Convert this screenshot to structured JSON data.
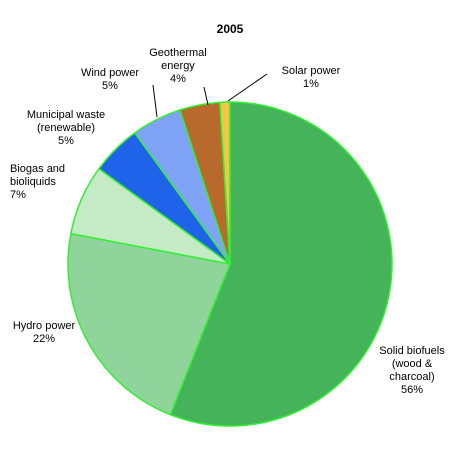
{
  "chart_data": {
    "type": "pie",
    "title": "2005",
    "legend": "none",
    "unit": "%",
    "slices": [
      {
        "label_lines": [
          "Solid biofuels",
          "(wood &",
          "charcoal)"
        ],
        "value": 56,
        "value_label": "56%",
        "color": "#44b35a"
      },
      {
        "label_lines": [
          "Hydro power"
        ],
        "value": 22,
        "value_label": "22%",
        "color": "#8fd49a"
      },
      {
        "label_lines": [
          "Biogas and",
          "bioliquids"
        ],
        "value": 7,
        "value_label": "7%",
        "color": "#c5ebc6"
      },
      {
        "label_lines": [
          "Municipal waste",
          "(renewable)"
        ],
        "value": 5,
        "value_label": "5%",
        "color": "#1f63ea"
      },
      {
        "label_lines": [
          "Wind power"
        ],
        "value": 5,
        "value_label": "5%",
        "color": "#7fa3f7"
      },
      {
        "label_lines": [
          "Geothermal",
          "energy"
        ],
        "value": 4,
        "value_label": "4%",
        "color": "#b8692c"
      },
      {
        "label_lines": [
          "Solar power"
        ],
        "value": 1,
        "value_label": "1%",
        "color": "#f2c744"
      }
    ],
    "slice_border_color": "#33ee33"
  }
}
